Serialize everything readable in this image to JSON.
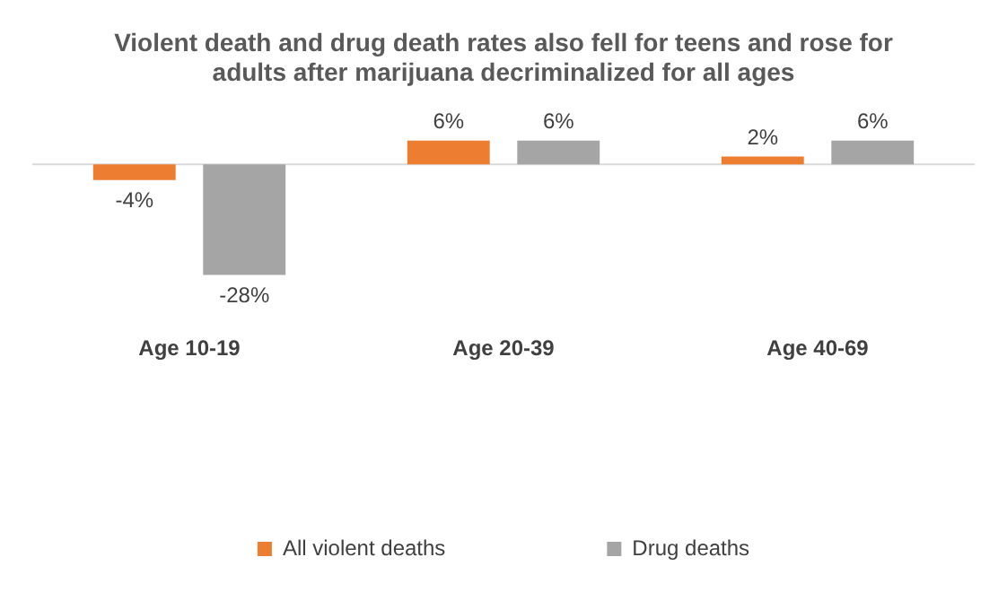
{
  "chart_data": {
    "type": "bar",
    "title": "Violent death and drug death rates also fell for teens and rose for adults after marijuana decriminalized for all ages",
    "categories": [
      "Age 10-19",
      "Age 20-39",
      "Age 40-69"
    ],
    "series": [
      {
        "name": "All violent deaths",
        "color": "#ed7d31",
        "values": [
          -4,
          6,
          2
        ],
        "value_labels": [
          "-4%",
          "6%",
          "2%"
        ]
      },
      {
        "name": "Drug deaths",
        "color": "#a5a5a5",
        "values": [
          -28,
          6,
          6
        ],
        "value_labels": [
          "-28%",
          "6%",
          "6%"
        ]
      }
    ],
    "ref_lines": [
      {
        "axis": "y",
        "value": 0,
        "color": "#d9d9d9"
      }
    ],
    "grid": false,
    "legend": "bottom"
  }
}
